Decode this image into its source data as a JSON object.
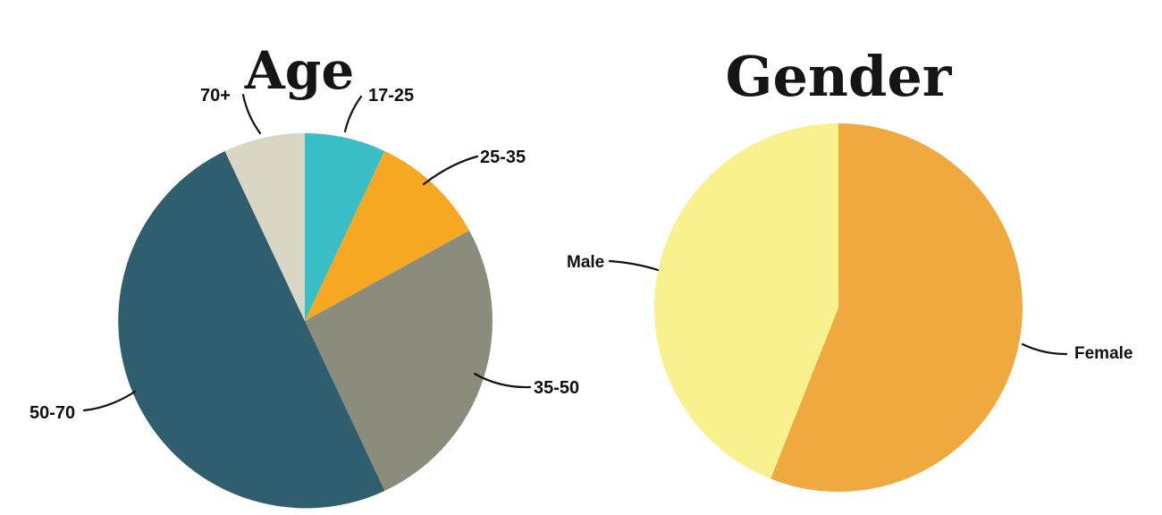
{
  "page": {
    "background": "#ffffff",
    "text_color": "#111111"
  },
  "chart_data": [
    {
      "type": "pie",
      "title": "Age",
      "direction": "clockwise",
      "start_angle_deg": 0,
      "units": "percent (estimated from slice angles)",
      "legend_position": "outside-callout-labels",
      "slices": [
        {
          "label": "17-25",
          "value": 7,
          "color": "#38bec4"
        },
        {
          "label": "25-35",
          "value": 10,
          "color": "#f7a823"
        },
        {
          "label": "35-50",
          "value": 26,
          "color": "#8c8c7c"
        },
        {
          "label": "50-70",
          "value": 50,
          "color": "#2f5f6e"
        },
        {
          "label": "70+",
          "value": 7,
          "color": "#d9d6c5"
        }
      ]
    },
    {
      "type": "pie",
      "title": "Gender",
      "direction": "clockwise",
      "start_angle_deg": 0,
      "units": "percent (estimated from slice angles)",
      "legend_position": "outside-callout-labels",
      "slices": [
        {
          "label": "Female",
          "value": 56,
          "color": "#f0a93e"
        },
        {
          "label": "Male",
          "value": 44,
          "color": "#f8f18e"
        }
      ]
    }
  ]
}
